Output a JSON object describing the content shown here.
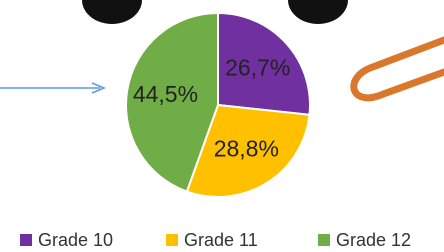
{
  "chart_data": {
    "type": "pie",
    "categories": [
      "Grade 10",
      "Grade 11",
      "Grade 12"
    ],
    "values": [
      26.7,
      28.8,
      44.5
    ],
    "value_labels": [
      "26,7%",
      "28,8%",
      "44,5%"
    ],
    "colors": [
      "#7030a0",
      "#ffc000",
      "#70ad47"
    ],
    "legend": "bottom"
  }
}
